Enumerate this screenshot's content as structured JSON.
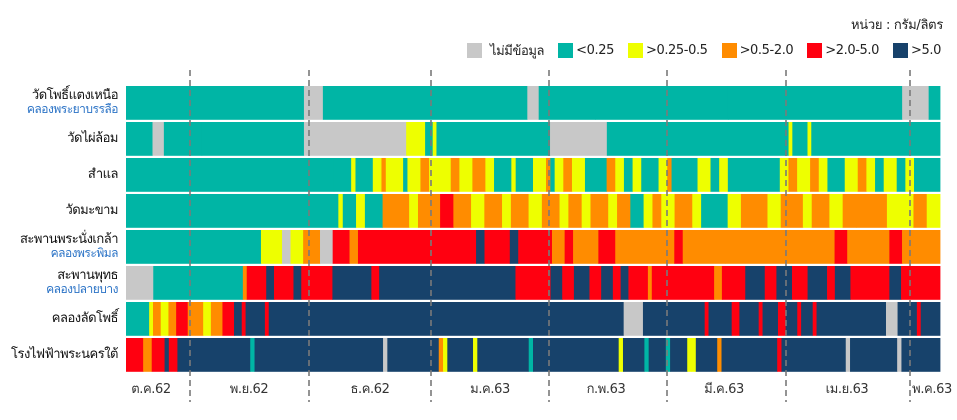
{
  "unit_label": "หน่วย : กรัม/ลิตร",
  "legend": [
    {
      "key": "n",
      "label": "ไม่มีข้อมูล",
      "color": "#c8c8c8"
    },
    {
      "key": "a",
      "label": "<0.25",
      "color": "#00b5a5"
    },
    {
      "key": "b",
      "label": ">0.25-0.5",
      "color": "#eeff00"
    },
    {
      "key": "c",
      "label": ">0.5-2.0",
      "color": "#ff8c00"
    },
    {
      "key": "d",
      "label": ">2.0-5.0",
      "color": "#ff0010"
    },
    {
      "key": "e",
      "label": ">5.0",
      "color": "#17426b"
    }
  ],
  "chart_data": {
    "type": "heatmap",
    "title": "",
    "unit": "กรัม/ลิตร",
    "x_ticks": [
      {
        "label": "ต.ค.62",
        "day": 0
      },
      {
        "label": "พ.ย.62",
        "day": 24
      },
      {
        "label": "ธ.ค.62",
        "day": 54
      },
      {
        "label": "ม.ค.63",
        "day": 85
      },
      {
        "label": "ก.พ.63",
        "day": 116
      },
      {
        "label": "มี.ค.63",
        "day": 145
      },
      {
        "label": "เม.ย.63",
        "day": 176
      },
      {
        "label": "พ.ค.63",
        "day": 206
      }
    ],
    "month_dividers_day": [
      24,
      54,
      85,
      116,
      145,
      176,
      206
    ],
    "total_days": 215,
    "start_date": "2019-10-08",
    "categories_note": "each row is a run-length list of [category_key, days]",
    "rows": [
      {
        "name": "วัดโพธิ์แตงเหนือ",
        "sub": "คลองพระยาบรรลือ",
        "runs": [
          [
            "a",
            47
          ],
          [
            "n",
            5
          ],
          [
            "a",
            54
          ],
          [
            "n",
            3
          ],
          [
            "a",
            15
          ],
          [
            "a",
            35
          ],
          [
            "a",
            46
          ],
          [
            "n",
            7
          ],
          [
            "a",
            3
          ]
        ]
      },
      {
        "name": "วัดไผ่ล้อม",
        "sub": "",
        "runs": [
          [
            "a",
            7
          ],
          [
            "n",
            3
          ],
          [
            "a",
            10
          ],
          [
            "a",
            27
          ],
          [
            "n",
            27
          ],
          [
            "b",
            5
          ],
          [
            "a",
            2
          ],
          [
            "b",
            1
          ],
          [
            "a",
            30
          ],
          [
            "n",
            15
          ],
          [
            "a",
            48
          ],
          [
            "b",
            1
          ],
          [
            "a",
            4
          ],
          [
            "b",
            1
          ],
          [
            "a",
            34
          ]
        ]
      },
      {
        "name": "สำแล",
        "sub": "",
        "runs": [
          [
            "a",
            48
          ],
          [
            "a",
            4
          ],
          [
            "b",
            1
          ],
          [
            "a",
            4
          ],
          [
            "b",
            2
          ],
          [
            "c",
            1
          ],
          [
            "b",
            4
          ],
          [
            "a",
            1
          ],
          [
            "b",
            3
          ],
          [
            "c",
            2
          ],
          [
            "b",
            5
          ],
          [
            "c",
            2
          ],
          [
            "b",
            3
          ],
          [
            "c",
            3
          ],
          [
            "b",
            2
          ],
          [
            "a",
            4
          ],
          [
            "b",
            1
          ],
          [
            "a",
            4
          ],
          [
            "b",
            3
          ],
          [
            "c",
            1
          ],
          [
            "a",
            1
          ],
          [
            "b",
            2
          ],
          [
            "c",
            2
          ],
          [
            "b",
            3
          ],
          [
            "a",
            5
          ],
          [
            "c",
            2
          ],
          [
            "b",
            2
          ],
          [
            "a",
            2
          ],
          [
            "b",
            2
          ],
          [
            "a",
            4
          ],
          [
            "b",
            2
          ],
          [
            "c",
            1
          ],
          [
            "a",
            6
          ],
          [
            "b",
            3
          ],
          [
            "a",
            2
          ],
          [
            "b",
            2
          ],
          [
            "a",
            12
          ],
          [
            "b",
            2
          ],
          [
            "c",
            2
          ],
          [
            "b",
            3
          ],
          [
            "c",
            2
          ],
          [
            "b",
            2
          ],
          [
            "a",
            4
          ],
          [
            "b",
            3
          ],
          [
            "c",
            2
          ],
          [
            "b",
            2
          ],
          [
            "a",
            2
          ],
          [
            "b",
            3
          ],
          [
            "a",
            2
          ],
          [
            "b",
            2
          ],
          [
            "a",
            6
          ]
        ]
      },
      {
        "name": "วัดมะขาม",
        "sub": "",
        "runs": [
          [
            "a",
            48
          ],
          [
            "b",
            1
          ],
          [
            "a",
            3
          ],
          [
            "b",
            2
          ],
          [
            "a",
            4
          ],
          [
            "c",
            6
          ],
          [
            "b",
            2
          ],
          [
            "c",
            5
          ],
          [
            "d",
            3
          ],
          [
            "c",
            4
          ],
          [
            "b",
            3
          ],
          [
            "c",
            4
          ],
          [
            "b",
            2
          ],
          [
            "c",
            4
          ],
          [
            "b",
            3
          ],
          [
            "c",
            4
          ],
          [
            "b",
            2
          ],
          [
            "c",
            3
          ],
          [
            "b",
            2
          ],
          [
            "c",
            4
          ],
          [
            "b",
            2
          ],
          [
            "c",
            3
          ],
          [
            "a",
            3
          ],
          [
            "b",
            2
          ],
          [
            "c",
            2
          ],
          [
            "b",
            3
          ],
          [
            "c",
            4
          ],
          [
            "b",
            2
          ],
          [
            "a",
            6
          ],
          [
            "b",
            3
          ],
          [
            "c",
            6
          ],
          [
            "b",
            3
          ],
          [
            "c",
            5
          ],
          [
            "b",
            2
          ],
          [
            "c",
            4
          ],
          [
            "b",
            3
          ],
          [
            "c",
            3
          ],
          [
            "c",
            7
          ],
          [
            "b",
            6
          ],
          [
            "c",
            3
          ],
          [
            "b",
            3
          ]
        ]
      },
      {
        "name": "สะพานพระนั่งเกล้า",
        "sub": "คลองพระพิมล",
        "runs": [
          [
            "a",
            32
          ],
          [
            "b",
            5
          ],
          [
            "n",
            2
          ],
          [
            "b",
            3
          ],
          [
            "c",
            4
          ],
          [
            "n",
            3
          ],
          [
            "d",
            4
          ],
          [
            "c",
            2
          ],
          [
            "d",
            28
          ],
          [
            "e",
            2
          ],
          [
            "d",
            6
          ],
          [
            "e",
            2
          ],
          [
            "d",
            8
          ],
          [
            "c",
            3
          ],
          [
            "d",
            2
          ],
          [
            "c",
            6
          ],
          [
            "d",
            4
          ],
          [
            "c",
            14
          ],
          [
            "d",
            2
          ],
          [
            "c",
            10
          ],
          [
            "c",
            26
          ],
          [
            "d",
            3
          ],
          [
            "c",
            10
          ],
          [
            "d",
            3
          ],
          [
            "c",
            9
          ]
        ]
      },
      {
        "name": "สะพานพุทธ",
        "sub": "คลองปลายบาง",
        "runs": [
          [
            "n",
            7
          ],
          [
            "a",
            23
          ],
          [
            "c",
            1
          ],
          [
            "d",
            5
          ],
          [
            "e",
            2
          ],
          [
            "d",
            5
          ],
          [
            "e",
            2
          ],
          [
            "d",
            8
          ],
          [
            "e",
            10
          ],
          [
            "d",
            2
          ],
          [
            "e",
            35
          ],
          [
            "d",
            9
          ],
          [
            "e",
            3
          ],
          [
            "d",
            3
          ],
          [
            "e",
            4
          ],
          [
            "d",
            3
          ],
          [
            "e",
            3
          ],
          [
            "d",
            2
          ],
          [
            "e",
            2
          ],
          [
            "d",
            5
          ],
          [
            "c",
            1
          ],
          [
            "d",
            16
          ],
          [
            "c",
            2
          ],
          [
            "d",
            6
          ],
          [
            "e",
            5
          ],
          [
            "d",
            3
          ],
          [
            "e",
            4
          ],
          [
            "d",
            4
          ],
          [
            "e",
            5
          ],
          [
            "d",
            2
          ],
          [
            "e",
            4
          ],
          [
            "d",
            10
          ],
          [
            "e",
            3
          ],
          [
            "d",
            10
          ]
        ]
      },
      {
        "name": "คลองลัดโพธิ์",
        "sub": "",
        "runs": [
          [
            "a",
            6
          ],
          [
            "b",
            1
          ],
          [
            "c",
            2
          ],
          [
            "b",
            2
          ],
          [
            "c",
            2
          ],
          [
            "d",
            3
          ],
          [
            "c",
            4
          ],
          [
            "b",
            2
          ],
          [
            "c",
            3
          ],
          [
            "d",
            3
          ],
          [
            "e",
            2
          ],
          [
            "d",
            1
          ],
          [
            "e",
            5
          ],
          [
            "d",
            1
          ],
          [
            "e",
            92
          ],
          [
            "n",
            5
          ],
          [
            "e",
            16
          ],
          [
            "d",
            1
          ],
          [
            "e",
            6
          ],
          [
            "d",
            2
          ],
          [
            "e",
            5
          ],
          [
            "d",
            1
          ],
          [
            "e",
            4
          ],
          [
            "d",
            2
          ],
          [
            "e",
            3
          ],
          [
            "d",
            1
          ],
          [
            "e",
            3
          ],
          [
            "d",
            1
          ],
          [
            "e",
            18
          ],
          [
            "n",
            3
          ],
          [
            "e",
            5
          ],
          [
            "d",
            1
          ],
          [
            "e",
            5
          ]
        ]
      },
      {
        "name": "โรงไฟฟ้าพระนครใต้",
        "sub": "",
        "runs": [
          [
            "d",
            4
          ],
          [
            "c",
            2
          ],
          [
            "d",
            3
          ],
          [
            "e",
            1
          ],
          [
            "d",
            2
          ],
          [
            "e",
            3
          ],
          [
            "e",
            14
          ],
          [
            "a",
            1
          ],
          [
            "e",
            30
          ],
          [
            "n",
            1
          ],
          [
            "e",
            12
          ],
          [
            "c",
            1
          ],
          [
            "b",
            1
          ],
          [
            "e",
            6
          ],
          [
            "b",
            1
          ],
          [
            "e",
            12
          ],
          [
            "a",
            1
          ],
          [
            "e",
            20
          ],
          [
            "b",
            1
          ],
          [
            "e",
            5
          ],
          [
            "a",
            1
          ],
          [
            "e",
            4
          ],
          [
            "a",
            1
          ],
          [
            "e",
            4
          ],
          [
            "b",
            1
          ],
          [
            "b",
            1
          ],
          [
            "e",
            5
          ],
          [
            "c",
            1
          ],
          [
            "e",
            13
          ],
          [
            "d",
            1
          ],
          [
            "e",
            15
          ],
          [
            "n",
            1
          ],
          [
            "e",
            11
          ],
          [
            "n",
            1
          ],
          [
            "e",
            9
          ]
        ]
      }
    ]
  }
}
